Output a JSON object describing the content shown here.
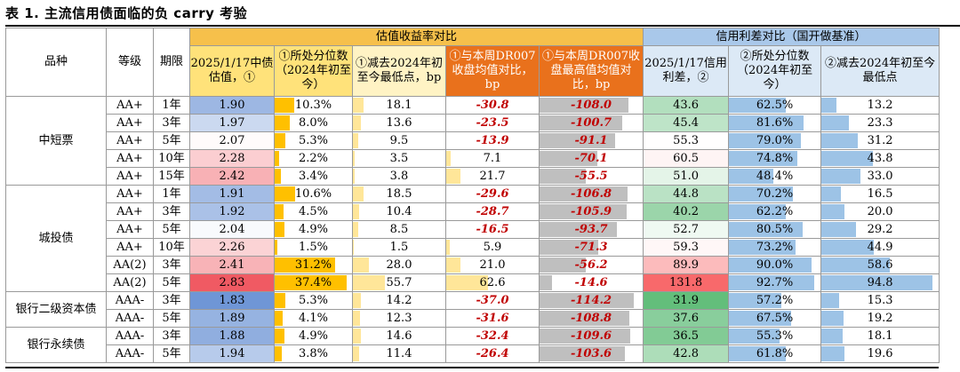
{
  "title": "表 1. 主流信用债面临的负 carry 考验",
  "headers": {
    "variety": "品种",
    "grade": "等级",
    "tenor": "期限",
    "group_yield": "估值收益率对比",
    "group_spread": "信用利差对比（国开做基准）",
    "c1": "2025/1/17中债估值，①",
    "c2": "①所处分位数（2024年初至今）",
    "c3": "①减去2024年初至今最低点，bp",
    "c4": "①与本周DR007收盘均值对比，bp",
    "c5": "①与本周DR007收盘最高值均值对比，bp",
    "c6": "2025/1/17信用利差，②",
    "c7": "②所处分位数（2024年初至今）",
    "c8": "②减去2024年初至今最低点"
  },
  "groups": [
    {
      "name": "中短票",
      "rows": [
        {
          "grade": "AA+",
          "tenor": "1年",
          "c1": "1.90",
          "c2": "10.3%",
          "c3": "18.1",
          "c4": "-30.8",
          "c5": "-108.0",
          "c6": "43.6",
          "c7": "62.5%",
          "c8": "13.2"
        },
        {
          "grade": "AA+",
          "tenor": "3年",
          "c1": "1.97",
          "c2": "8.0%",
          "c3": "13.6",
          "c4": "-23.5",
          "c5": "-100.7",
          "c6": "45.4",
          "c7": "81.6%",
          "c8": "23.3"
        },
        {
          "grade": "AA+",
          "tenor": "5年",
          "c1": "2.07",
          "c2": "5.3%",
          "c3": "9.5",
          "c4": "-13.9",
          "c5": "-91.1",
          "c6": "55.3",
          "c7": "79.0%",
          "c8": "31.2"
        },
        {
          "grade": "AA+",
          "tenor": "10年",
          "c1": "2.28",
          "c2": "2.2%",
          "c3": "3.5",
          "c4": "7.1",
          "c5": "-70.1",
          "c6": "60.5",
          "c7": "74.8%",
          "c8": "43.8"
        },
        {
          "grade": "AA+",
          "tenor": "15年",
          "c1": "2.42",
          "c2": "3.4%",
          "c3": "3.8",
          "c4": "21.7",
          "c5": "-55.5",
          "c6": "51.0",
          "c7": "48.4%",
          "c8": "33.0"
        }
      ]
    },
    {
      "name": "城投债",
      "rows": [
        {
          "grade": "AA+",
          "tenor": "1年",
          "c1": "1.91",
          "c2": "10.6%",
          "c3": "18.5",
          "c4": "-29.6",
          "c5": "-106.8",
          "c6": "44.8",
          "c7": "70.2%",
          "c8": "16.5"
        },
        {
          "grade": "AA+",
          "tenor": "3年",
          "c1": "1.92",
          "c2": "4.5%",
          "c3": "10.4",
          "c4": "-28.7",
          "c5": "-105.9",
          "c6": "40.2",
          "c7": "62.2%",
          "c8": "20.0"
        },
        {
          "grade": "AA+",
          "tenor": "5年",
          "c1": "2.04",
          "c2": "4.9%",
          "c3": "8.5",
          "c4": "-16.5",
          "c5": "-93.7",
          "c6": "52.7",
          "c7": "80.5%",
          "c8": "29.2"
        },
        {
          "grade": "AA+",
          "tenor": "10年",
          "c1": "2.26",
          "c2": "1.5%",
          "c3": "1.5",
          "c4": "5.9",
          "c5": "-71.3",
          "c6": "59.3",
          "c7": "73.2%",
          "c8": "44.9"
        },
        {
          "grade": "AA(2)",
          "tenor": "3年",
          "c1": "2.41",
          "c2": "31.2%",
          "c3": "28.0",
          "c4": "21.0",
          "c5": "-56.2",
          "c6": "89.9",
          "c7": "90.0%",
          "c8": "58.6"
        },
        {
          "grade": "AA(2)",
          "tenor": "5年",
          "c1": "2.83",
          "c2": "37.4%",
          "c3": "55.7",
          "c4": "62.6",
          "c5": "-14.6",
          "c6": "131.8",
          "c7": "92.7%",
          "c8": "94.8"
        }
      ]
    },
    {
      "name": "银行二级资本债",
      "rows": [
        {
          "grade": "AAA-",
          "tenor": "3年",
          "c1": "1.83",
          "c2": "5.3%",
          "c3": "14.2",
          "c4": "-37.0",
          "c5": "-114.2",
          "c6": "31.9",
          "c7": "57.2%",
          "c8": "15.3"
        },
        {
          "grade": "AAA-",
          "tenor": "5年",
          "c1": "1.89",
          "c2": "4.1%",
          "c3": "12.3",
          "c4": "-31.6",
          "c5": "-108.8",
          "c6": "37.6",
          "c7": "67.5%",
          "c8": "19.2"
        }
      ]
    },
    {
      "name": "银行永续债",
      "rows": [
        {
          "grade": "AAA-",
          "tenor": "3年",
          "c1": "1.88",
          "c2": "4.9%",
          "c3": "14.6",
          "c4": "-32.4",
          "c5": "-109.6",
          "c6": "36.5",
          "c7": "55.3%",
          "c8": "18.1"
        },
        {
          "grade": "AAA-",
          "tenor": "5年",
          "c1": "1.94",
          "c2": "3.8%",
          "c3": "11.4",
          "c4": "-26.4",
          "c5": "-103.6",
          "c6": "42.8",
          "c7": "61.8%",
          "c8": "19.6"
        }
      ]
    }
  ],
  "colors": {
    "yield_low": "#6f96d6",
    "yield_mid": "#ffffff",
    "yield_high": "#f05a63",
    "spread_low": "#63be7b",
    "spread_mid": "#ffffff",
    "spread_high": "#f8696b",
    "bar_yellow": "#ffc000",
    "bar_lightyellow": "#ffe699",
    "bar_gray": "#bfbfbf",
    "bar_blue": "#9dc3e6"
  }
}
